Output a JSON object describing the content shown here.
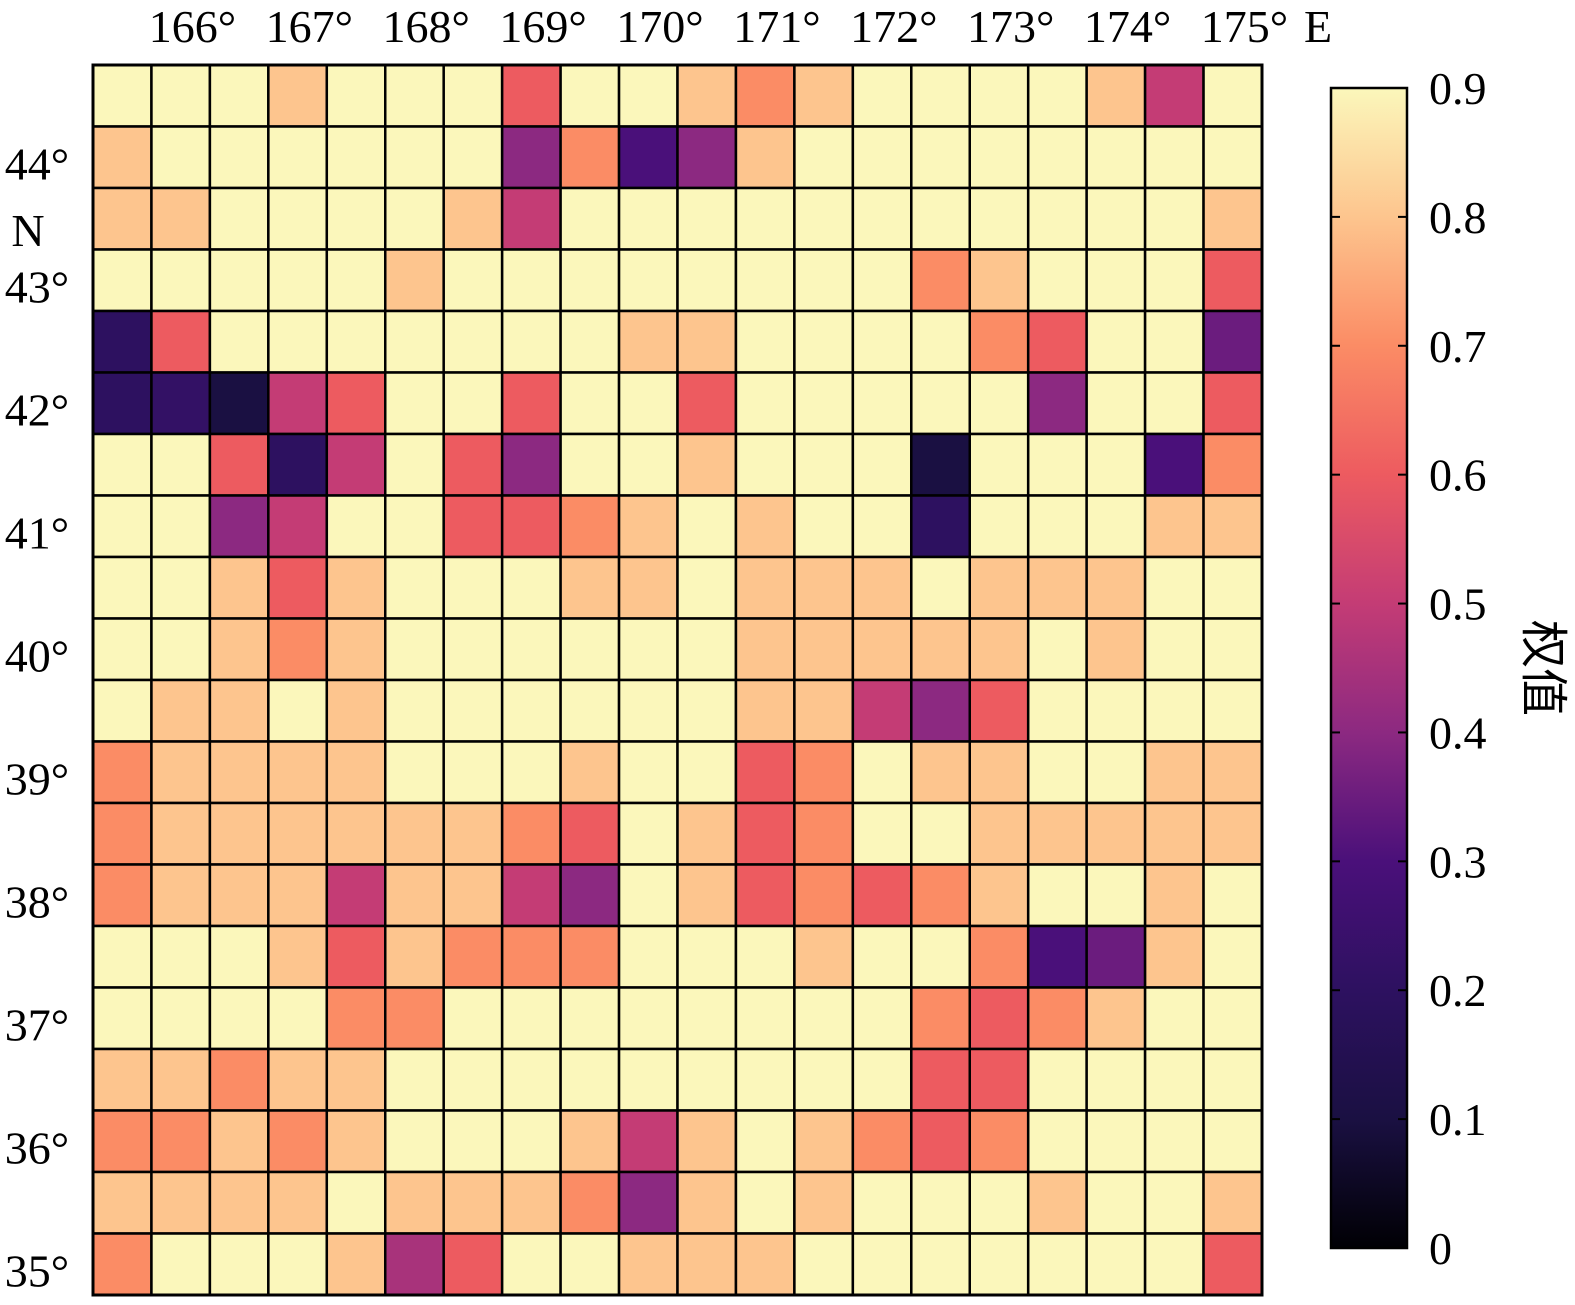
{
  "chart_data": {
    "type": "heatmap",
    "x_tick_labels": [
      "166°",
      "167°",
      "168°",
      "169°",
      "170°",
      "171°",
      "172°",
      "173°",
      "174°",
      "175°"
    ],
    "x_unit_label": "E",
    "y_tick_labels": [
      "44°",
      "43°",
      "42°",
      "41°",
      "40°",
      "39°",
      "38°",
      "37°",
      "36°",
      "35°"
    ],
    "y_unit_label": "N",
    "colorbar": {
      "label": "权值",
      "range": [
        0,
        0.9
      ],
      "tick_labels": [
        "0.9",
        "0.8",
        "0.7",
        "0.6",
        "0.5",
        "0.4",
        "0.3",
        "0.2",
        "0.1",
        "0"
      ],
      "colormap": "magma"
    },
    "rows": 20,
    "cols": 20,
    "values": [
      [
        0.9,
        0.9,
        0.9,
        0.8,
        0.9,
        0.9,
        0.9,
        0.6,
        0.9,
        0.9,
        0.8,
        0.7,
        0.8,
        0.9,
        0.9,
        0.9,
        0.9,
        0.8,
        0.5,
        0.9
      ],
      [
        0.8,
        0.9,
        0.9,
        0.9,
        0.9,
        0.9,
        0.9,
        0.4,
        0.7,
        0.3,
        0.4,
        0.8,
        0.9,
        0.9,
        0.9,
        0.9,
        0.9,
        0.9,
        0.9,
        0.9
      ],
      [
        0.8,
        0.8,
        0.9,
        0.9,
        0.9,
        0.9,
        0.8,
        0.5,
        0.9,
        0.9,
        0.9,
        0.9,
        0.9,
        0.9,
        0.9,
        0.9,
        0.9,
        0.9,
        0.9,
        0.8
      ],
      [
        0.9,
        0.9,
        0.9,
        0.9,
        0.9,
        0.8,
        0.9,
        0.9,
        0.9,
        0.9,
        0.9,
        0.9,
        0.9,
        0.9,
        0.7,
        0.8,
        0.9,
        0.9,
        0.9,
        0.6
      ],
      [
        0.2,
        0.6,
        0.9,
        0.9,
        0.9,
        0.9,
        0.9,
        0.9,
        0.9,
        0.8,
        0.8,
        0.9,
        0.9,
        0.9,
        0.9,
        0.7,
        0.6,
        0.9,
        0.9,
        0.35
      ],
      [
        0.2,
        0.22,
        0.1,
        0.5,
        0.6,
        0.9,
        0.9,
        0.6,
        0.9,
        0.9,
        0.6,
        0.9,
        0.9,
        0.9,
        0.9,
        0.9,
        0.4,
        0.9,
        0.9,
        0.6
      ],
      [
        0.9,
        0.9,
        0.6,
        0.2,
        0.5,
        0.9,
        0.6,
        0.4,
        0.9,
        0.9,
        0.8,
        0.9,
        0.9,
        0.9,
        0.1,
        0.9,
        0.9,
        0.9,
        0.3,
        0.7
      ],
      [
        0.9,
        0.9,
        0.4,
        0.5,
        0.9,
        0.9,
        0.6,
        0.6,
        0.7,
        0.8,
        0.9,
        0.8,
        0.9,
        0.9,
        0.2,
        0.9,
        0.9,
        0.9,
        0.8,
        0.8
      ],
      [
        0.9,
        0.9,
        0.8,
        0.6,
        0.8,
        0.9,
        0.9,
        0.9,
        0.8,
        0.8,
        0.9,
        0.8,
        0.8,
        0.8,
        0.9,
        0.8,
        0.8,
        0.8,
        0.9,
        0.9
      ],
      [
        0.9,
        0.9,
        0.8,
        0.7,
        0.8,
        0.9,
        0.9,
        0.9,
        0.9,
        0.9,
        0.9,
        0.8,
        0.8,
        0.8,
        0.8,
        0.8,
        0.9,
        0.8,
        0.9,
        0.9
      ],
      [
        0.9,
        0.8,
        0.8,
        0.9,
        0.8,
        0.9,
        0.9,
        0.9,
        0.9,
        0.9,
        0.9,
        0.8,
        0.8,
        0.5,
        0.4,
        0.6,
        0.9,
        0.9,
        0.9,
        0.9
      ],
      [
        0.7,
        0.8,
        0.8,
        0.8,
        0.8,
        0.9,
        0.9,
        0.9,
        0.8,
        0.9,
        0.9,
        0.6,
        0.7,
        0.9,
        0.8,
        0.8,
        0.9,
        0.9,
        0.8,
        0.8
      ],
      [
        0.7,
        0.8,
        0.8,
        0.8,
        0.8,
        0.8,
        0.8,
        0.7,
        0.6,
        0.9,
        0.8,
        0.6,
        0.7,
        0.9,
        0.9,
        0.8,
        0.8,
        0.8,
        0.8,
        0.8
      ],
      [
        0.7,
        0.8,
        0.8,
        0.8,
        0.5,
        0.8,
        0.8,
        0.5,
        0.4,
        0.9,
        0.8,
        0.6,
        0.7,
        0.6,
        0.7,
        0.8,
        0.9,
        0.9,
        0.8,
        0.9
      ],
      [
        0.9,
        0.9,
        0.9,
        0.8,
        0.6,
        0.8,
        0.7,
        0.7,
        0.7,
        0.9,
        0.9,
        0.9,
        0.8,
        0.9,
        0.9,
        0.7,
        0.3,
        0.35,
        0.8,
        0.9
      ],
      [
        0.9,
        0.9,
        0.9,
        0.9,
        0.7,
        0.7,
        0.9,
        0.9,
        0.9,
        0.9,
        0.9,
        0.9,
        0.9,
        0.9,
        0.7,
        0.6,
        0.7,
        0.8,
        0.9,
        0.9
      ],
      [
        0.8,
        0.8,
        0.7,
        0.8,
        0.8,
        0.9,
        0.9,
        0.9,
        0.9,
        0.9,
        0.9,
        0.9,
        0.9,
        0.9,
        0.6,
        0.6,
        0.9,
        0.9,
        0.9,
        0.9
      ],
      [
        0.7,
        0.7,
        0.8,
        0.7,
        0.8,
        0.9,
        0.9,
        0.9,
        0.8,
        0.5,
        0.8,
        0.9,
        0.8,
        0.7,
        0.6,
        0.7,
        0.9,
        0.9,
        0.9,
        0.9
      ],
      [
        0.8,
        0.8,
        0.8,
        0.8,
        0.9,
        0.8,
        0.8,
        0.8,
        0.7,
        0.4,
        0.8,
        0.9,
        0.8,
        0.9,
        0.9,
        0.9,
        0.8,
        0.9,
        0.9,
        0.8
      ],
      [
        0.7,
        0.9,
        0.9,
        0.9,
        0.8,
        0.45,
        0.6,
        0.9,
        0.9,
        0.8,
        0.8,
        0.8,
        0.9,
        0.9,
        0.9,
        0.9,
        0.9,
        0.9,
        0.9,
        0.6
      ]
    ]
  }
}
